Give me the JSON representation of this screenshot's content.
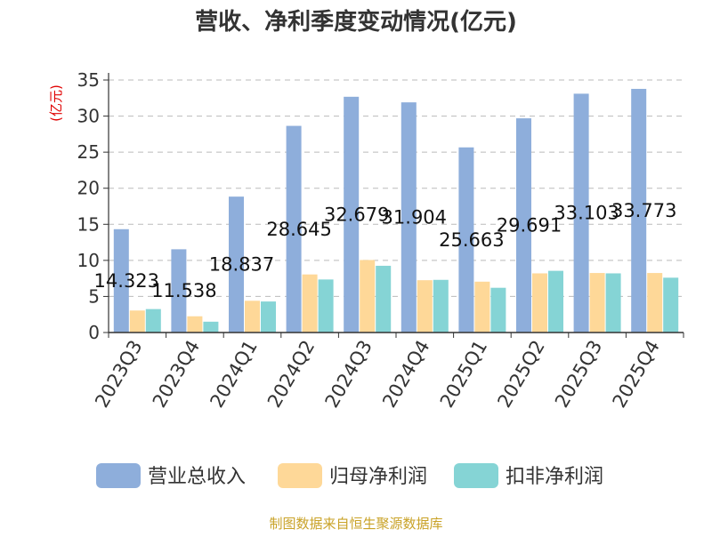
{
  "chart_data": {
    "type": "bar",
    "title": "营收、净利季度变动情况(亿元)",
    "ylabel": "(亿元)",
    "xlabel": "",
    "ylim": [
      0,
      35
    ],
    "yticks": [
      0,
      5,
      10,
      15,
      20,
      25,
      30,
      35
    ],
    "grid": true,
    "legend_position": "bottom",
    "categories": [
      "2023Q3",
      "2023Q4",
      "2024Q1",
      "2024Q2",
      "2024Q3",
      "2024Q4",
      "2025Q1",
      "2025Q2",
      "2025Q3",
      "2025Q4"
    ],
    "series": [
      {
        "name": "营业总收入",
        "color": "#8EAEDB",
        "values": [
          14.323,
          11.538,
          18.837,
          28.645,
          32.679,
          31.904,
          25.663,
          29.691,
          33.103,
          33.773
        ],
        "labels": [
          "14.323",
          "11.538",
          "18.837",
          "28.645",
          "32.679",
          "31.904",
          "25.663",
          "29.691",
          "33.103",
          "33.773"
        ]
      },
      {
        "name": "归母净利润",
        "color": "#FED898",
        "values": [
          3.05,
          2.25,
          4.4,
          8.05,
          10.05,
          7.25,
          7.05,
          8.2,
          8.25,
          8.25
        ]
      },
      {
        "name": "扣非净利润",
        "color": "#85D4D5",
        "values": [
          3.25,
          1.5,
          4.3,
          7.35,
          9.25,
          7.3,
          6.2,
          8.55,
          8.2,
          7.6
        ]
      }
    ],
    "source_note": "制图数据来自恒生聚源数据库",
    "colors": {
      "title": "#333333",
      "ylabel": "#e00000",
      "source": "#c9a227",
      "axis": "#333333",
      "grid": "#bbbbbb"
    }
  }
}
